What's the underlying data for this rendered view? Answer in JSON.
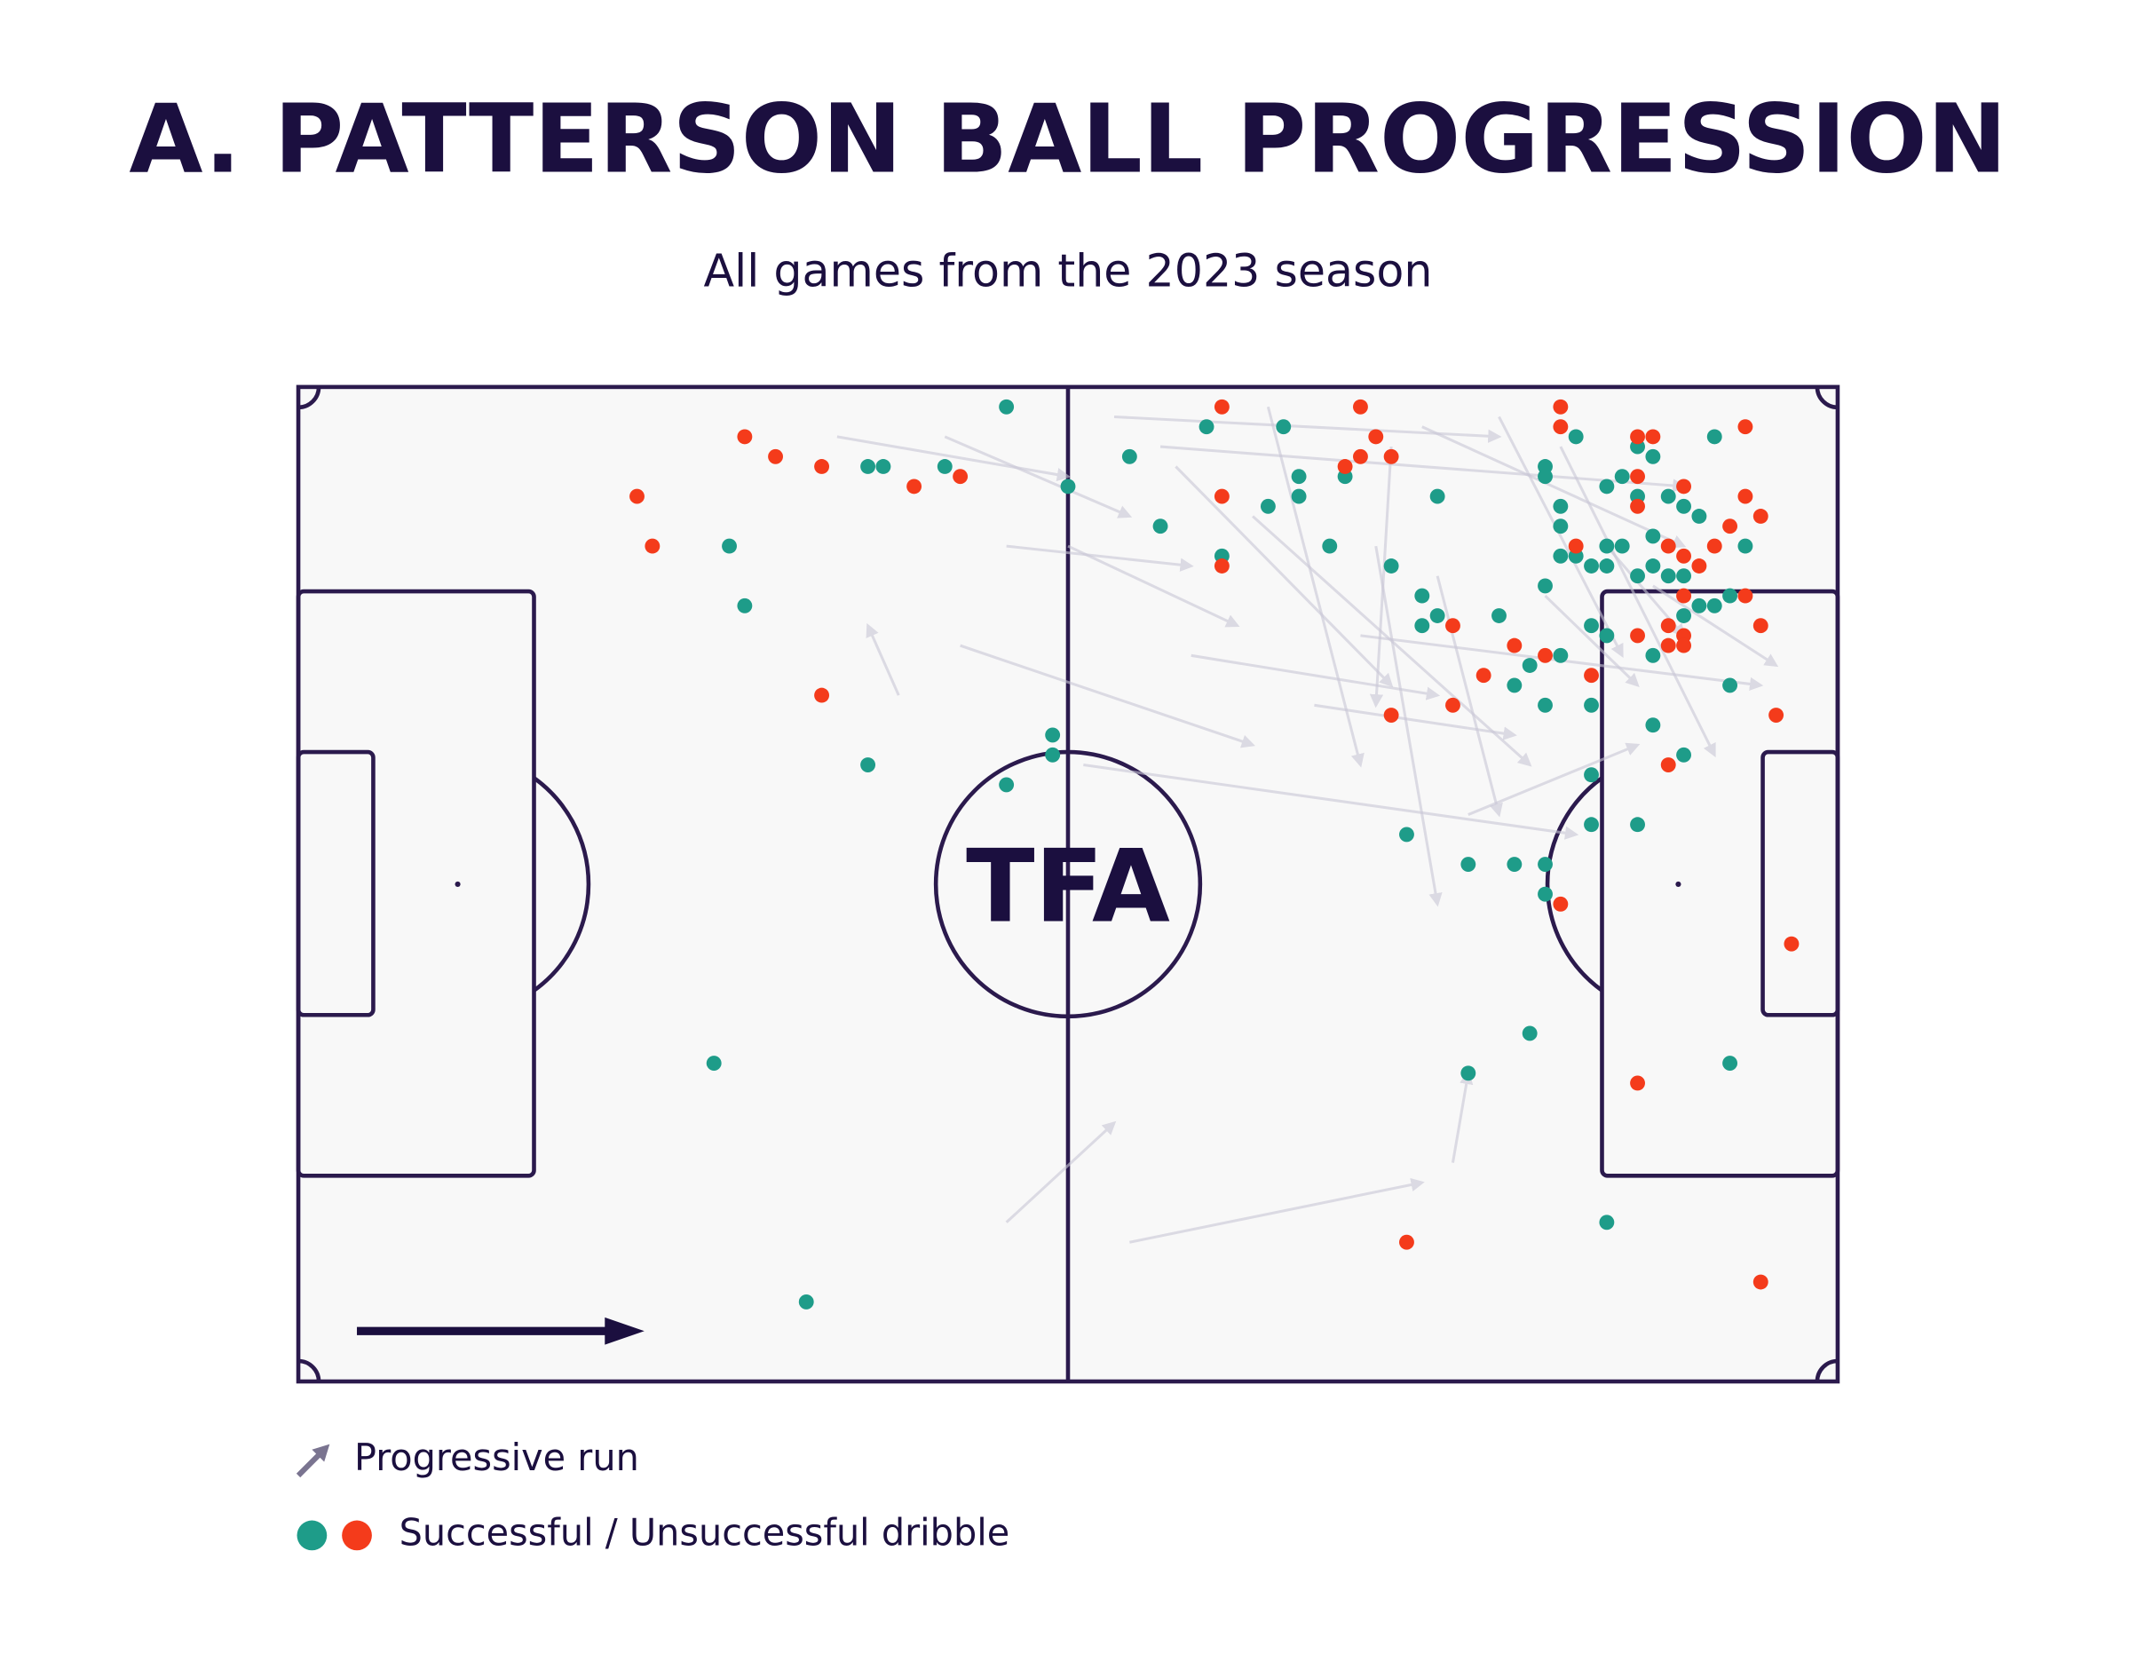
{
  "chart_data": {
    "type": "scatter",
    "title": "A. PATTERSON BALL PROGRESSION",
    "subtitle": "All games from the 2023 season",
    "logo": "TFA",
    "legend": [
      "Progressive run",
      "Successful / Unsuccessful dribble"
    ],
    "xlim": [
      0,
      100
    ],
    "ylim": [
      0,
      100
    ],
    "series": [
      {
        "color": "#1e9c89",
        "x": [
          46,
          54,
          59,
          64,
          37,
          38,
          42,
          50,
          56,
          65,
          65,
          63,
          68,
          74,
          67,
          60,
          71,
          28,
          29,
          73,
          74,
          73,
          78,
          81,
          81,
          82,
          82,
          82,
          83,
          84,
          85,
          85,
          86,
          85,
          86,
          87,
          88,
          87,
          89,
          90,
          91,
          88,
          87,
          88,
          89,
          90,
          90,
          91,
          92,
          93,
          94,
          92,
          81,
          84,
          85,
          88,
          82,
          80,
          79,
          81,
          84,
          93,
          88,
          90,
          49,
          49,
          46,
          37,
          84,
          84,
          87,
          72,
          76,
          79,
          81,
          81,
          80,
          76,
          93,
          27,
          85,
          33,
          83
        ],
        "y": [
          98,
          93,
          96,
          96,
          92,
          92,
          92,
          90,
          86,
          91,
          89,
          88,
          91,
          89,
          84,
          83,
          82,
          84,
          78,
          79,
          77,
          76,
          77,
          92,
          91,
          88,
          86,
          83,
          95,
          82,
          82,
          84,
          84,
          90,
          91,
          94,
          93,
          89,
          89,
          88,
          87,
          85,
          81,
          82,
          81,
          81,
          77,
          78,
          78,
          79,
          84,
          95,
          80,
          76,
          75,
          73,
          73,
          72,
          70,
          68,
          68,
          70,
          66,
          63,
          65,
          63,
          60,
          62,
          61,
          56,
          56,
          55,
          52,
          52,
          52,
          49,
          35,
          31,
          32,
          32,
          16,
          8,
          83
        ]
      },
      {
        "color": "#f43b1b",
        "x": [
          60,
          69,
          82,
          82,
          70,
          71,
          69,
          68,
          87,
          88,
          94,
          29,
          31,
          34,
          43,
          40,
          22,
          60,
          23,
          87,
          87,
          90,
          94,
          95,
          93,
          92,
          89,
          90,
          91,
          83,
          90,
          94,
          95,
          89,
          90,
          87,
          89,
          90,
          60,
          75,
          79,
          81,
          84,
          77,
          75,
          71,
          34,
          96,
          89,
          82,
          97,
          87,
          72,
          95
        ],
        "y": [
          98,
          98,
          98,
          96,
          95,
          93,
          93,
          92,
          95,
          95,
          96,
          95,
          93,
          92,
          91,
          90,
          89,
          89,
          84,
          91,
          88,
          90,
          89,
          87,
          86,
          84,
          84,
          83,
          82,
          84,
          79,
          79,
          76,
          76,
          75,
          75,
          74,
          74,
          82,
          76,
          74,
          73,
          71,
          71,
          68,
          67,
          69,
          67,
          62,
          48,
          44,
          30,
          14,
          10
        ]
      }
    ],
    "runs": {
      "color": "#c9c7d6",
      "x": [
        46,
        54,
        75,
        39,
        43,
        46,
        53,
        42,
        50,
        35,
        57,
        62,
        70,
        51,
        76,
        78,
        73,
        82,
        85,
        66,
        58,
        69,
        74,
        88,
        63,
        71,
        81,
        56
      ],
      "y": [
        16,
        14,
        22,
        69,
        74,
        84,
        97,
        95,
        84,
        95,
        92,
        87,
        84,
        62,
        57,
        97,
        96,
        94,
        84,
        68,
        73,
        75,
        81,
        80,
        98,
        94,
        79,
        94
      ],
      "x_end": [
        53,
        73,
        76,
        37,
        62,
        58,
        78,
        54,
        61,
        50,
        71,
        80,
        74,
        83,
        87,
        86,
        90,
        92,
        90,
        79,
        74,
        95,
        78,
        96,
        69,
        70,
        87,
        90
      ],
      "y_end": [
        26,
        20,
        31,
        76,
        64,
        82,
        95,
        87,
        76,
        91,
        70,
        62,
        48,
        55,
        64,
        73,
        84,
        63,
        75,
        65,
        69,
        70,
        57,
        72,
        62,
        68,
        70,
        90
      ]
    }
  }
}
